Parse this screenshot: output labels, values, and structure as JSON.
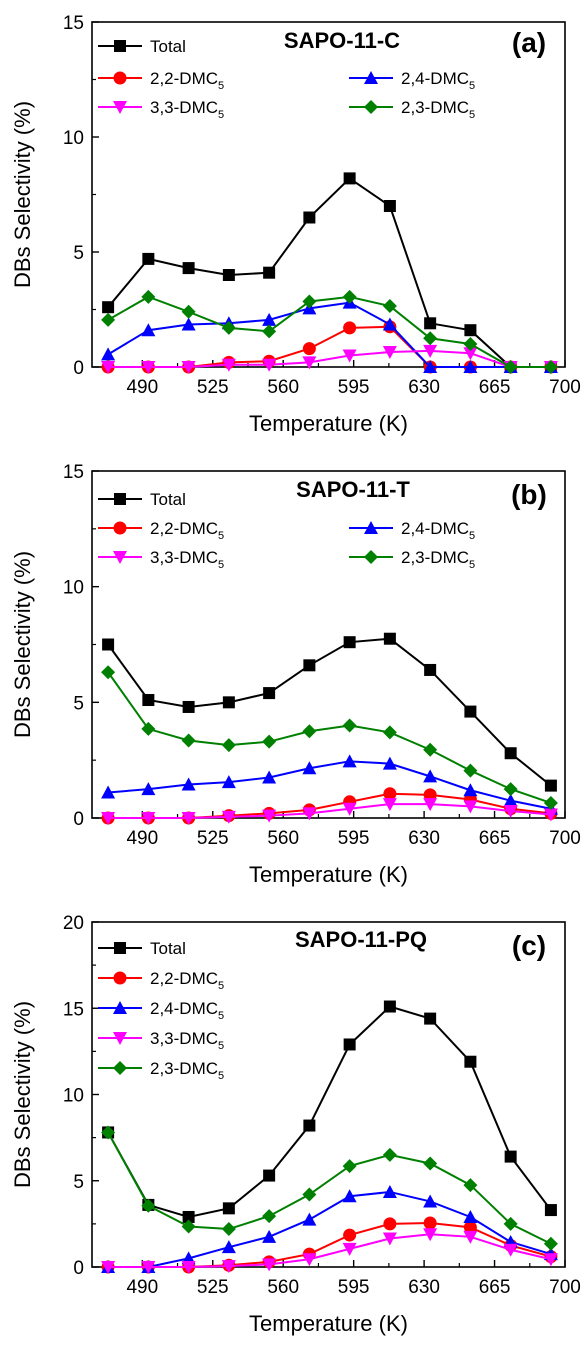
{
  "figure": {
    "xlabel": "Temperature (K)",
    "ylabel": "DBs Selectivity (%)"
  },
  "chart_data": [
    {
      "type": "line",
      "title": "SAPO-11-C",
      "panel_label": "(a)",
      "xlabel": "Temperature (K)",
      "ylabel": "DBs Selectivity (%)",
      "xlim": [
        465,
        700
      ],
      "ylim": [
        0,
        15
      ],
      "xticks": [
        490,
        525,
        560,
        595,
        630,
        665,
        700
      ],
      "yticks": [
        0,
        5,
        10,
        15
      ],
      "x": [
        473,
        493,
        513,
        533,
        553,
        573,
        593,
        613,
        633,
        653,
        673,
        693
      ],
      "series": [
        {
          "name": "Total",
          "base": "Total",
          "sub": "",
          "color": "#000000",
          "marker": "square",
          "values": [
            2.6,
            4.7,
            4.3,
            4.0,
            4.1,
            6.5,
            8.2,
            7.0,
            1.9,
            1.6,
            0.0,
            0.0
          ]
        },
        {
          "name": "2,2-DMC5",
          "base": "2,2-DMC",
          "sub": "5",
          "color": "#ff0000",
          "marker": "circle",
          "values": [
            0.0,
            0.0,
            0.0,
            0.2,
            0.25,
            0.8,
            1.7,
            1.75,
            0.0,
            0.0,
            0.0,
            0.0
          ]
        },
        {
          "name": "2,4-DMC5",
          "base": "2,4-DMC",
          "sub": "5",
          "color": "#0000ff",
          "marker": "triangle-up",
          "values": [
            0.55,
            1.6,
            1.85,
            1.9,
            2.05,
            2.55,
            2.8,
            1.85,
            0.0,
            0.0,
            0.0,
            0.0
          ]
        },
        {
          "name": "3,3-DMC5",
          "base": "3,3-DMC",
          "sub": "5",
          "color": "#ff00ff",
          "marker": "triangle-down",
          "values": [
            0.0,
            0.0,
            0.0,
            0.1,
            0.1,
            0.2,
            0.5,
            0.65,
            0.7,
            0.6,
            0.0,
            0.0
          ]
        },
        {
          "name": "2,3-DMC5",
          "base": "2,3-DMC",
          "sub": "5",
          "color": "#008000",
          "marker": "diamond",
          "values": [
            2.05,
            3.05,
            2.4,
            1.7,
            1.55,
            2.85,
            3.05,
            2.65,
            1.25,
            1.0,
            0.0,
            0.0
          ]
        }
      ]
    },
    {
      "type": "line",
      "title": "SAPO-11-T",
      "panel_label": "(b)",
      "xlabel": "Temperature (K)",
      "ylabel": "DBs Selectivity (%)",
      "xlim": [
        465,
        700
      ],
      "ylim": [
        0,
        15
      ],
      "xticks": [
        490,
        525,
        560,
        595,
        630,
        665,
        700
      ],
      "yticks": [
        0,
        5,
        10,
        15
      ],
      "x": [
        473,
        493,
        513,
        533,
        553,
        573,
        593,
        613,
        633,
        653,
        673,
        693
      ],
      "series": [
        {
          "name": "Total",
          "base": "Total",
          "sub": "",
          "color": "#000000",
          "marker": "square",
          "values": [
            7.5,
            5.1,
            4.8,
            5.0,
            5.4,
            6.6,
            7.6,
            7.75,
            6.4,
            4.6,
            2.8,
            1.4
          ]
        },
        {
          "name": "2,2-DMC5",
          "base": "2,2-DMC",
          "sub": "5",
          "color": "#ff0000",
          "marker": "circle",
          "values": [
            0.0,
            0.0,
            0.0,
            0.1,
            0.2,
            0.35,
            0.7,
            1.05,
            1.0,
            0.8,
            0.4,
            0.2
          ]
        },
        {
          "name": "2,4-DMC5",
          "base": "2,4-DMC",
          "sub": "5",
          "color": "#0000ff",
          "marker": "triangle-up",
          "values": [
            1.1,
            1.25,
            1.45,
            1.55,
            1.75,
            2.15,
            2.45,
            2.35,
            1.8,
            1.2,
            0.75,
            0.4
          ]
        },
        {
          "name": "3,3-DMC5",
          "base": "3,3-DMC",
          "sub": "5",
          "color": "#ff00ff",
          "marker": "triangle-down",
          "values": [
            0.0,
            0.0,
            0.0,
            0.05,
            0.1,
            0.2,
            0.4,
            0.6,
            0.6,
            0.5,
            0.3,
            0.15
          ]
        },
        {
          "name": "2,3-DMC5",
          "base": "2,3-DMC",
          "sub": "5",
          "color": "#008000",
          "marker": "diamond",
          "values": [
            6.3,
            3.85,
            3.35,
            3.15,
            3.3,
            3.75,
            4.0,
            3.7,
            2.95,
            2.05,
            1.25,
            0.65
          ]
        }
      ]
    },
    {
      "type": "line",
      "title": "SAPO-11-PQ",
      "panel_label": "(c)",
      "xlabel": "Temperature (K)",
      "ylabel": "DBs Selectivity (%)",
      "xlim": [
        465,
        700
      ],
      "ylim": [
        0,
        20
      ],
      "xticks": [
        490,
        525,
        560,
        595,
        630,
        665,
        700
      ],
      "yticks": [
        0,
        5,
        10,
        15,
        20
      ],
      "x": [
        473,
        493,
        513,
        533,
        553,
        573,
        593,
        613,
        633,
        653,
        673,
        693
      ],
      "series": [
        {
          "name": "Total",
          "base": "Total",
          "sub": "",
          "color": "#000000",
          "marker": "square",
          "values": [
            7.8,
            3.6,
            2.9,
            3.4,
            5.3,
            8.2,
            12.9,
            15.1,
            14.4,
            11.9,
            6.4,
            3.3
          ]
        },
        {
          "name": "2,2-DMC5",
          "base": "2,2-DMC",
          "sub": "5",
          "color": "#ff0000",
          "marker": "circle",
          "values": [
            0.0,
            0.0,
            0.0,
            0.1,
            0.3,
            0.75,
            1.85,
            2.5,
            2.55,
            2.3,
            1.25,
            0.6
          ]
        },
        {
          "name": "2,4-DMC5",
          "base": "2,4-DMC",
          "sub": "5",
          "color": "#0000ff",
          "marker": "triangle-up",
          "values": [
            0.0,
            0.0,
            0.5,
            1.15,
            1.75,
            2.75,
            4.1,
            4.35,
            3.8,
            2.9,
            1.45,
            0.75
          ]
        },
        {
          "name": "3,3-DMC5",
          "base": "3,3-DMC",
          "sub": "5",
          "color": "#ff00ff",
          "marker": "triangle-down",
          "values": [
            0.0,
            0.0,
            0.0,
            0.05,
            0.15,
            0.45,
            1.05,
            1.65,
            1.9,
            1.75,
            1.0,
            0.45
          ]
        },
        {
          "name": "2,3-DMC5",
          "base": "2,3-DMC",
          "sub": "5",
          "color": "#008000",
          "marker": "diamond",
          "values": [
            7.8,
            3.55,
            2.35,
            2.2,
            2.95,
            4.2,
            5.85,
            6.5,
            6.0,
            4.75,
            2.5,
            1.35
          ]
        }
      ]
    }
  ]
}
